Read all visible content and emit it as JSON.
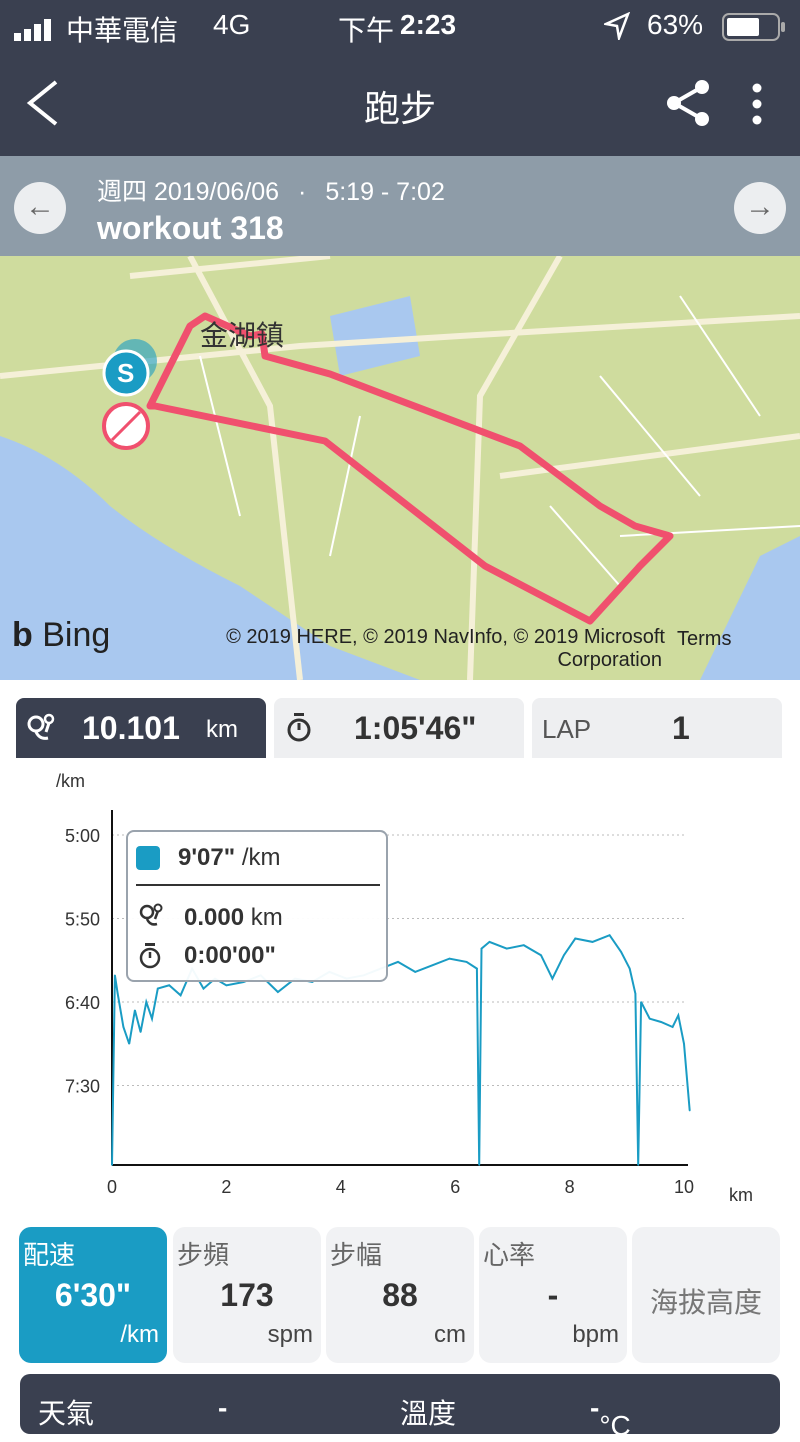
{
  "status_bar": {
    "carrier": "中華電信",
    "network": "4G",
    "time_prefix": "下午",
    "time": "2:23",
    "battery": "63%"
  },
  "header": {
    "title": "跑步",
    "back_icon": "chevron-left-icon",
    "share_icon": "share-icon",
    "more_icon": "more-vertical-icon"
  },
  "workout": {
    "date": "週四 2019/06/06",
    "separator": "·",
    "time_range": "5:19 - 7:02",
    "name": "workout 318"
  },
  "map": {
    "place_label": "金湖鎮",
    "provider": "Bing",
    "copyright_line1": "© 2019 HERE, © 2019 NavInfo, © 2019 Microsoft",
    "copyright_line2": "Corporation",
    "terms": "Terms",
    "start_marker": "S",
    "route_color": "#f0506e",
    "water_color": "#a9c8ef",
    "land_color": "#cfdc9e"
  },
  "summary_tabs": [
    {
      "value": "10.101",
      "unit": "km",
      "icon": "distance-pin-icon"
    },
    {
      "value": "1:05'46\"",
      "icon": "stopwatch-icon"
    },
    {
      "label": "LAP",
      "value": "1"
    }
  ],
  "tooltip": {
    "pace": "9'07\"",
    "pace_unit": "/km",
    "distance": "0.000",
    "distance_unit": "km",
    "time": "0:00'00\""
  },
  "chart_data": {
    "type": "line",
    "ylabel": "/km",
    "xlabel": "km",
    "y_inverted": true,
    "y_ticks": [
      "5:00",
      "5:50",
      "6:40",
      "7:30"
    ],
    "ylim": [
      "5:00",
      "8:18"
    ],
    "x_ticks": [
      0,
      2,
      4,
      6,
      8,
      10
    ],
    "xlim": [
      0,
      10.1
    ],
    "grid": "horizontal-dotted",
    "color": "#1a9cc4",
    "series": [
      {
        "x": [
          0,
          0.05,
          0.1,
          0.2,
          0.3,
          0.4,
          0.5,
          0.6,
          0.7,
          0.8,
          1.0,
          1.2,
          1.4,
          1.6,
          1.8,
          2.0,
          2.3,
          2.6,
          2.9,
          3.2,
          3.5,
          3.8,
          4.1,
          4.4,
          4.7,
          5.0,
          5.3,
          5.6,
          5.9,
          6.2,
          6.38,
          6.42,
          6.46,
          6.6,
          6.9,
          7.2,
          7.5,
          7.7,
          7.9,
          8.1,
          8.4,
          8.7,
          8.9,
          9.05,
          9.15,
          9.2,
          9.25,
          9.4,
          9.6,
          9.8,
          9.9,
          10.0,
          10.1
        ],
        "y": [
          "8:18",
          "6:24",
          "6:35",
          "6:55",
          "7:05",
          "6:45",
          "6:58",
          "6:40",
          "6:50",
          "6:32",
          "6:30",
          "6:36",
          "6:20",
          "6:32",
          "6:26",
          "6:30",
          "6:28",
          "6:24",
          "6:34",
          "6:26",
          "6:28",
          "6:22",
          "6:26",
          "6:24",
          "6:20",
          "6:16",
          "6:22",
          "6:18",
          "6:14",
          "6:16",
          "6:20",
          "8:18",
          "6:08",
          "6:04",
          "6:08",
          "6:06",
          "6:12",
          "6:26",
          "6:12",
          "6:02",
          "6:04",
          "6:00",
          "6:10",
          "6:20",
          "6:35",
          "8:18",
          "6:40",
          "6:50",
          "6:52",
          "6:55",
          "6:48",
          "7:05",
          "7:45"
        ]
      }
    ]
  },
  "metric_tiles": [
    {
      "label": "配速",
      "value": "6'30\"",
      "unit": "/km",
      "active": true
    },
    {
      "label": "步頻",
      "value": "173",
      "unit": "spm"
    },
    {
      "label": "步幅",
      "value": "88",
      "unit": "cm"
    },
    {
      "label": "心率",
      "value": "-",
      "unit": "bpm"
    },
    {
      "label": "海拔高度"
    }
  ],
  "weather": {
    "label": "天氣",
    "value": "-",
    "temp_label": "溫度",
    "temp_value": "-",
    "temp_unit": "°C"
  }
}
